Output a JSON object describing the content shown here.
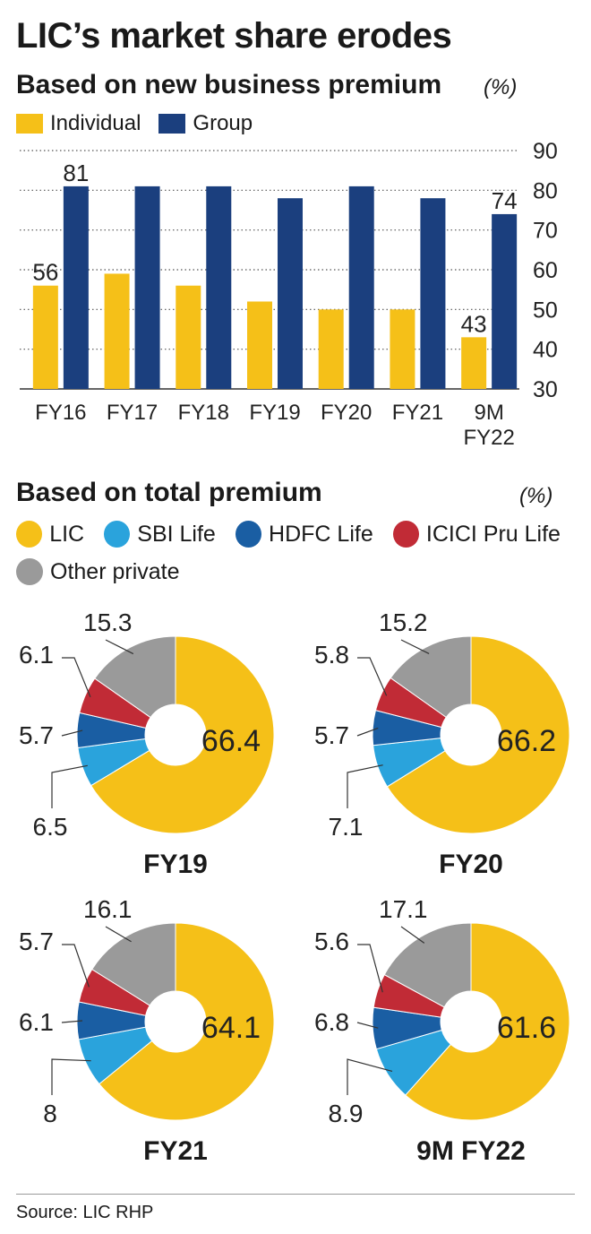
{
  "title": "LIC’s market share erodes",
  "colors": {
    "individual": "#f5c018",
    "group": "#1b3f7e",
    "lic": "#f5c018",
    "sbi": "#2aa3dc",
    "hdfc": "#1a5ea3",
    "icici": "#c12b36",
    "other": "#9a9a9a"
  },
  "chart_data": [
    {
      "type": "bar",
      "title": "Based on new business premium",
      "unit": "(%)",
      "categories": [
        "FY16",
        "FY17",
        "FY18",
        "FY19",
        "FY20",
        "FY21",
        "9M FY22"
      ],
      "series": [
        {
          "name": "Individual",
          "values": [
            56,
            59,
            56,
            52,
            50,
            50,
            43
          ]
        },
        {
          "name": "Group",
          "values": [
            81,
            81,
            81,
            78,
            81,
            78,
            74
          ]
        }
      ],
      "data_labels": {
        "Individual": [
          "56",
          "",
          "",
          "",
          "",
          "",
          "43"
        ],
        "Group": [
          "81",
          "",
          "",
          "",
          "",
          "",
          "74"
        ]
      },
      "ylim": [
        30,
        90
      ],
      "yticks": [
        30,
        40,
        50,
        60,
        70,
        80,
        90
      ],
      "grid": "dotted",
      "legend": "top-left"
    },
    {
      "type": "pie",
      "title": "Based on total premium",
      "unit": "(%)",
      "legend": [
        "LIC",
        "SBI Life",
        "HDFC Life",
        "ICICI Pru Life",
        "Other private"
      ],
      "charts": [
        {
          "label": "FY19",
          "values": {
            "lic": "66.4",
            "sbi": "6.5",
            "hdfc": "5.7",
            "icici": "6.1",
            "other": "15.3"
          }
        },
        {
          "label": "FY20",
          "values": {
            "lic": "66.2",
            "sbi": "7.1",
            "hdfc": "5.7",
            "icici": "5.8",
            "other": "15.2"
          }
        },
        {
          "label": "FY21",
          "values": {
            "lic": "64.1",
            "sbi": "8",
            "hdfc": "6.1",
            "icici": "5.7",
            "other": "16.1"
          }
        },
        {
          "label": "9M FY22",
          "values": {
            "lic": "61.6",
            "sbi": "8.9",
            "hdfc": "6.8",
            "icici": "5.6",
            "other": "17.1"
          }
        }
      ]
    }
  ],
  "source": "Source: LIC RHP"
}
